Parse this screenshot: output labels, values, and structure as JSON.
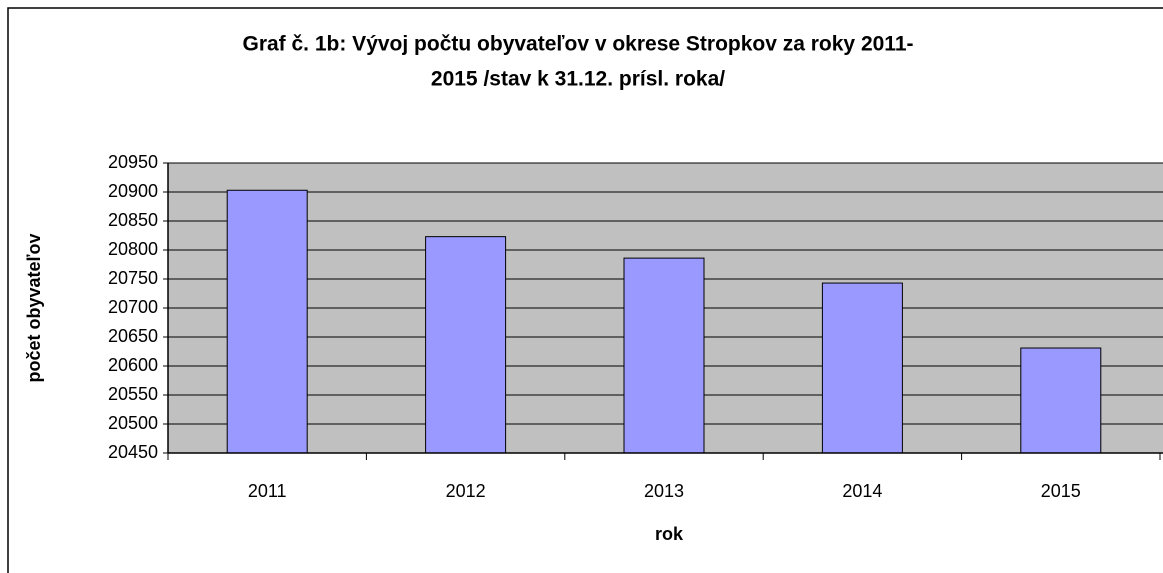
{
  "chart_data": {
    "type": "bar",
    "title": [
      "Graf č. 1b: Vývoj počtu obyvateľov v okrese Stropkov za roky 2011-",
      "2015 /stav k 31.12. prísl. roka/"
    ],
    "x_label": "rok",
    "y_label": "počet obyvateľov",
    "categories": [
      "2011",
      "2012",
      "2013",
      "2014",
      "2015"
    ],
    "values": [
      20903,
      20823,
      20786,
      20743,
      20631
    ],
    "color": "#9999ff",
    "ylim": [
      20450,
      20950
    ],
    "yticks": [
      20450,
      20500,
      20550,
      20600,
      20650,
      20700,
      20750,
      20800,
      20850,
      20900,
      20950
    ],
    "grid": true
  }
}
